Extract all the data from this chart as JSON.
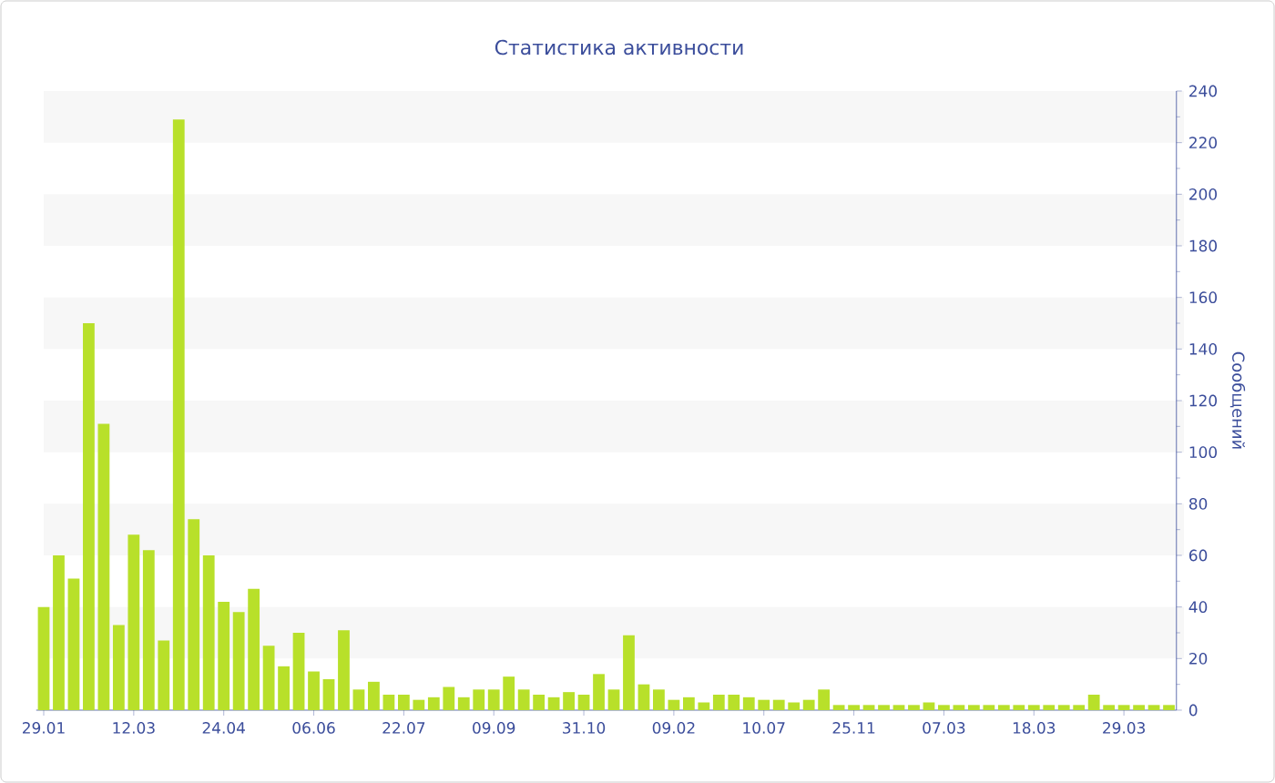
{
  "chart_data": {
    "type": "bar",
    "title": "Статистика активности",
    "ylabel": "Сообщений",
    "color": "#b8e02a",
    "categories": [
      "29.01",
      null,
      null,
      null,
      null,
      null,
      "12.03",
      null,
      null,
      null,
      null,
      null,
      "24.04",
      null,
      null,
      null,
      null,
      null,
      "06.06",
      null,
      null,
      null,
      null,
      null,
      "22.07",
      null,
      null,
      null,
      null,
      null,
      "09.09",
      null,
      null,
      null,
      null,
      null,
      "31.10",
      null,
      null,
      null,
      null,
      null,
      "09.02",
      null,
      null,
      null,
      null,
      null,
      "10.07",
      null,
      null,
      null,
      null,
      null,
      "25.11",
      null,
      null,
      null,
      null,
      null,
      "07.03",
      null,
      null,
      null,
      null,
      null,
      "18.03",
      null,
      null,
      null,
      null,
      null,
      "29.03",
      null,
      null,
      null
    ],
    "values": [
      40,
      60,
      51,
      150,
      111,
      33,
      68,
      62,
      27,
      229,
      74,
      60,
      42,
      38,
      47,
      25,
      17,
      30,
      15,
      12,
      31,
      8,
      11,
      6,
      6,
      4,
      5,
      9,
      5,
      8,
      8,
      13,
      8,
      6,
      5,
      7,
      6,
      14,
      8,
      29,
      10,
      8,
      4,
      5,
      3,
      6,
      6,
      5,
      4,
      4,
      3,
      4,
      8,
      2,
      2,
      2,
      2,
      2,
      2,
      3,
      2,
      2,
      2,
      2,
      2,
      2,
      2,
      2,
      2,
      2,
      6,
      2,
      2,
      2,
      2,
      2
    ],
    "ylim": [
      0,
      240
    ],
    "yticks": [
      0,
      20,
      40,
      60,
      80,
      100,
      120,
      140,
      160,
      180,
      200,
      220,
      240
    ],
    "bands": [
      {
        "axis": "y",
        "from": 20,
        "to": 40,
        "color": "#f7f7f7"
      },
      {
        "axis": "y",
        "from": 60,
        "to": 80,
        "color": "#f7f7f7"
      },
      {
        "axis": "y",
        "from": 100,
        "to": 120,
        "color": "#f7f7f7"
      },
      {
        "axis": "y",
        "from": 140,
        "to": 160,
        "color": "#f7f7f7"
      },
      {
        "axis": "y",
        "from": 180,
        "to": 200,
        "color": "#f7f7f7"
      },
      {
        "axis": "y",
        "from": 220,
        "to": 240,
        "color": "#f7f7f7"
      }
    ]
  }
}
